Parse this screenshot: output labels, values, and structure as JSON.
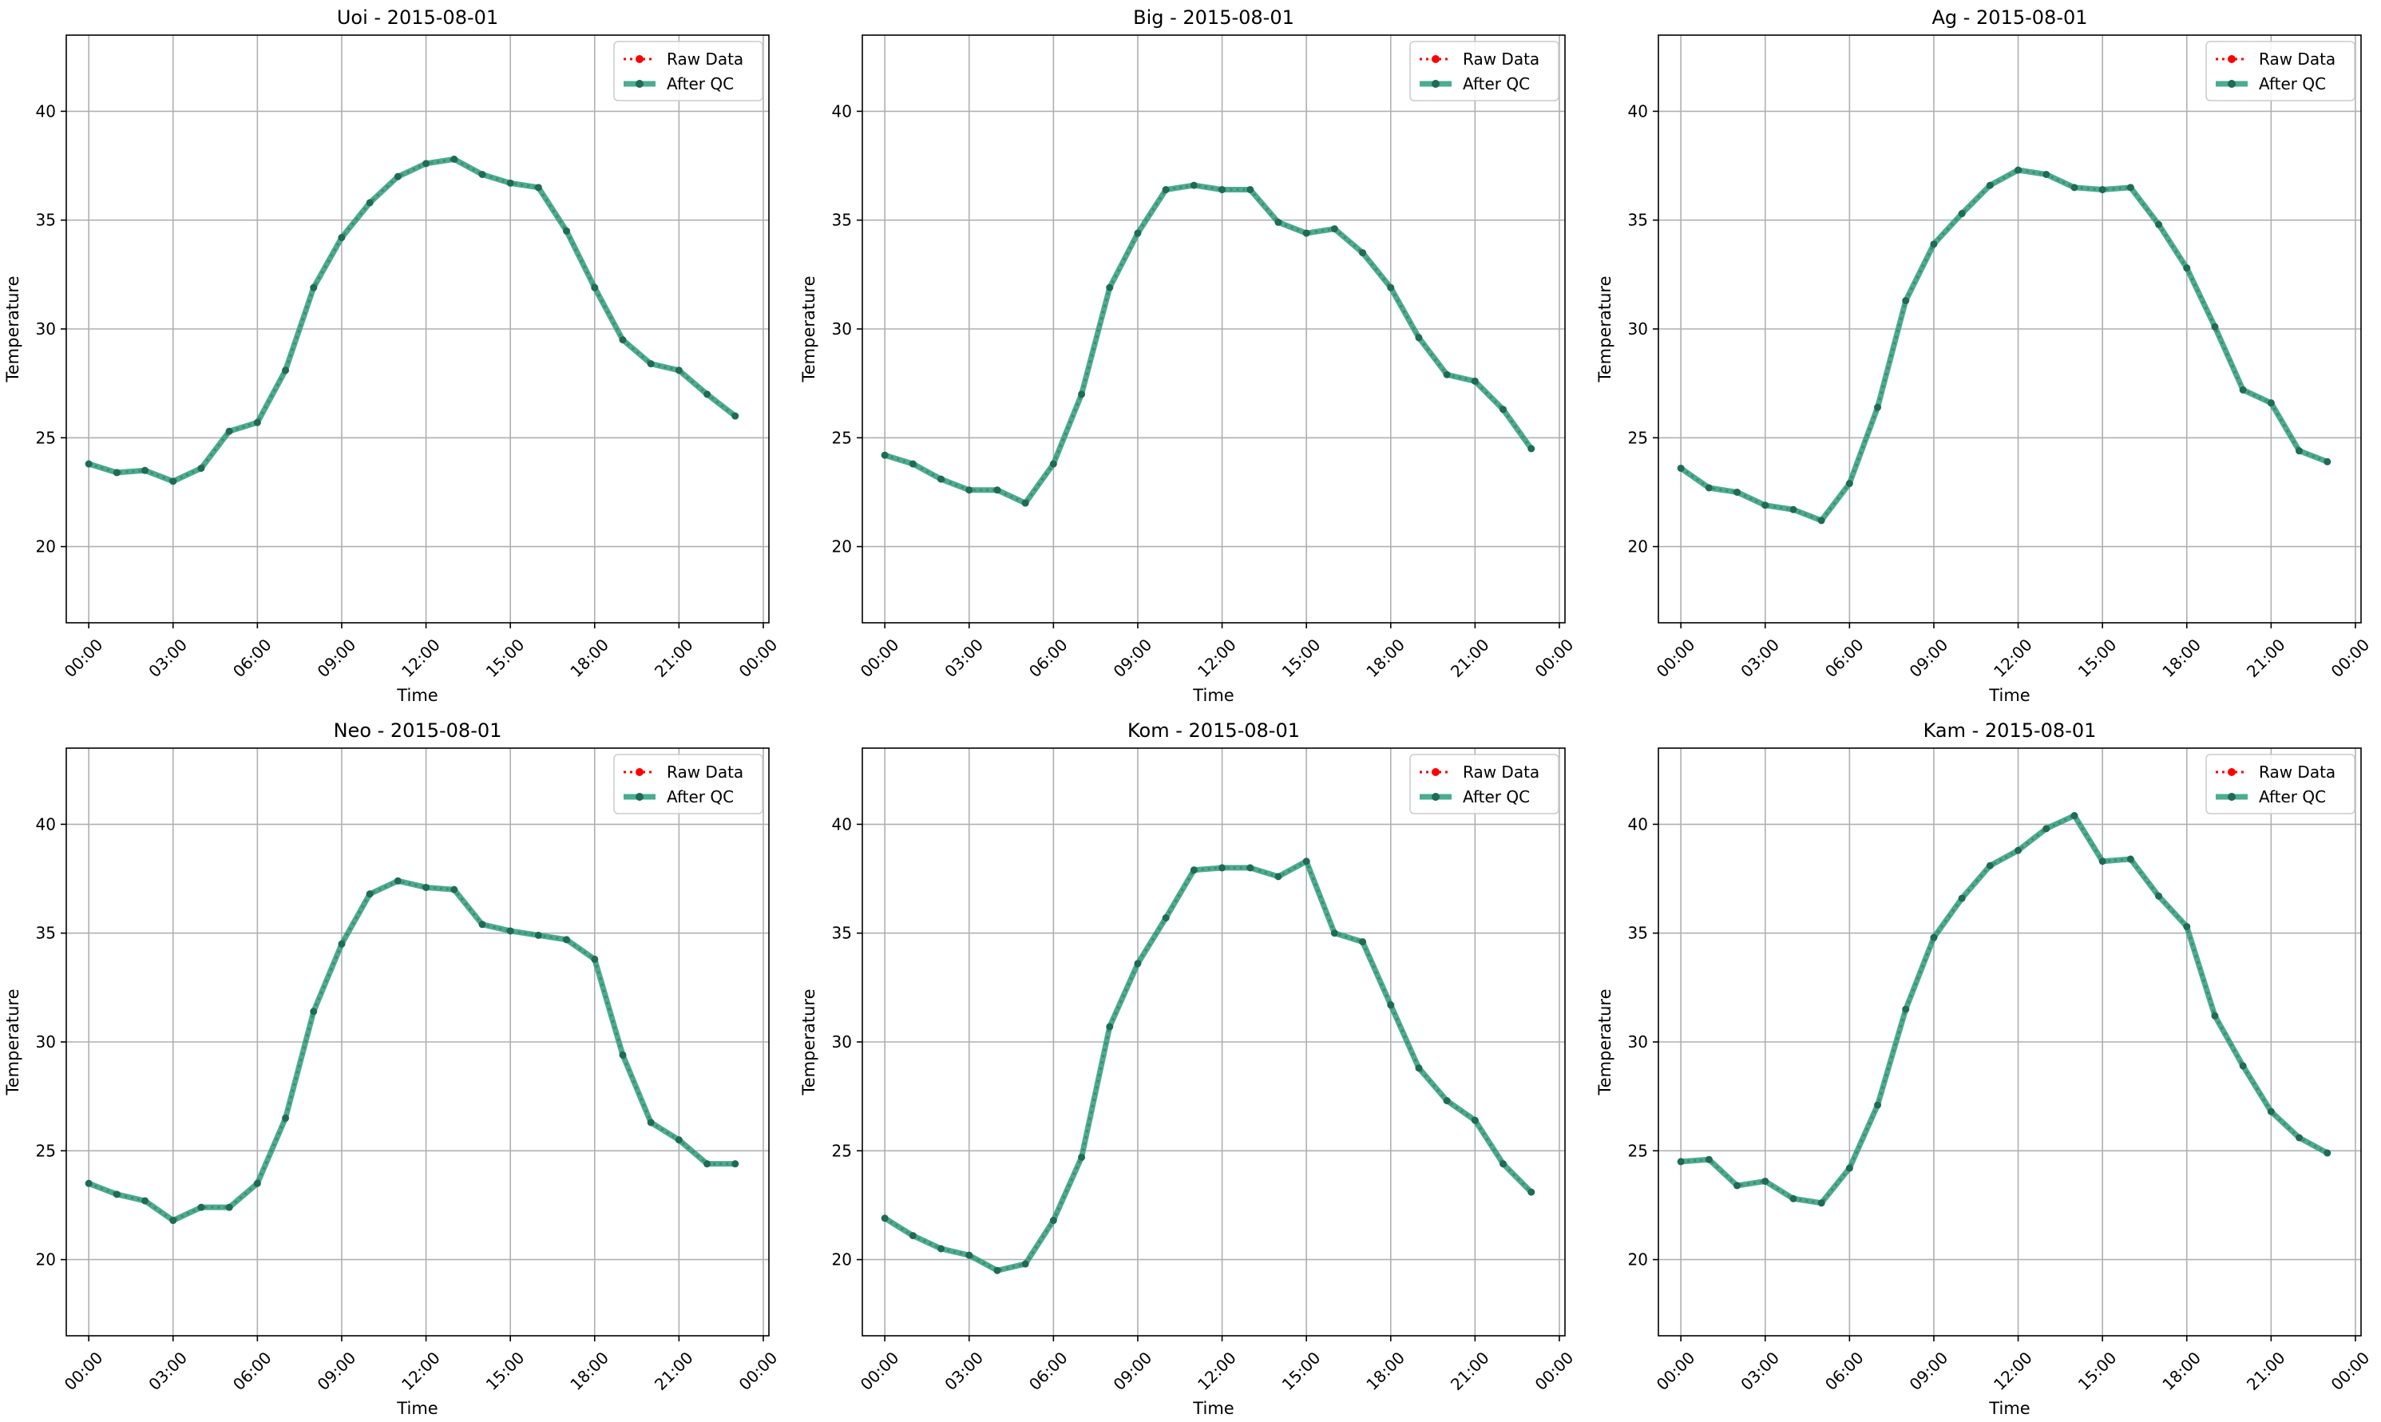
{
  "chart_data": [
    {
      "type": "line",
      "title": "Uoi - 2015-08-01",
      "xlabel": "Time",
      "ylabel": "Temperature",
      "xlim": [
        -0.8,
        24.2
      ],
      "ylim": [
        16.5,
        43.5
      ],
      "yticks": [
        20,
        25,
        30,
        35,
        40
      ],
      "xticks": [
        "00:00",
        "03:00",
        "06:00",
        "09:00",
        "12:00",
        "15:00",
        "18:00",
        "21:00",
        "00:00"
      ],
      "grid": true,
      "legend": "top-right",
      "x": [
        0,
        1,
        2,
        3,
        4,
        5,
        6,
        7,
        8,
        9,
        10,
        11,
        12,
        13,
        14,
        15,
        16,
        17,
        18,
        19,
        20,
        21,
        22,
        23
      ],
      "series": [
        {
          "name": "Raw Data",
          "style": "dotted",
          "color": "#ff0000",
          "values": [
            23.8,
            23.4,
            23.5,
            23.0,
            23.6,
            25.3,
            25.7,
            28.1,
            31.9,
            34.2,
            35.8,
            37.0,
            37.6,
            37.8,
            37.1,
            36.7,
            36.5,
            34.5,
            31.9,
            29.5,
            28.4,
            28.1,
            27.0,
            26.0
          ]
        },
        {
          "name": "After QC",
          "style": "solid",
          "color": "#2a9d7c",
          "values": [
            23.8,
            23.4,
            23.5,
            23.0,
            23.6,
            25.3,
            25.7,
            28.1,
            31.9,
            34.2,
            35.8,
            37.0,
            37.6,
            37.8,
            37.1,
            36.7,
            36.5,
            34.5,
            31.9,
            29.5,
            28.4,
            28.1,
            27.0,
            26.0
          ]
        }
      ]
    },
    {
      "type": "line",
      "title": "Big - 2015-08-01",
      "xlabel": "Time",
      "ylabel": "Temperature",
      "xlim": [
        -0.8,
        24.2
      ],
      "ylim": [
        16.5,
        43.5
      ],
      "yticks": [
        20,
        25,
        30,
        35,
        40
      ],
      "xticks": [
        "00:00",
        "03:00",
        "06:00",
        "09:00",
        "12:00",
        "15:00",
        "18:00",
        "21:00",
        "00:00"
      ],
      "grid": true,
      "legend": "top-right",
      "x": [
        0,
        1,
        2,
        3,
        4,
        5,
        6,
        7,
        8,
        9,
        10,
        11,
        12,
        13,
        14,
        15,
        16,
        17,
        18,
        19,
        20,
        21,
        22,
        23
      ],
      "series": [
        {
          "name": "Raw Data",
          "style": "dotted",
          "color": "#ff0000",
          "values": [
            24.2,
            23.8,
            23.1,
            22.6,
            22.6,
            22.0,
            23.8,
            27.0,
            31.9,
            34.4,
            36.4,
            36.6,
            36.4,
            36.4,
            34.9,
            34.4,
            34.6,
            33.5,
            31.9,
            29.6,
            27.9,
            27.6,
            26.3,
            24.5
          ]
        },
        {
          "name": "After QC",
          "style": "solid",
          "color": "#2a9d7c",
          "values": [
            24.2,
            23.8,
            23.1,
            22.6,
            22.6,
            22.0,
            23.8,
            27.0,
            31.9,
            34.4,
            36.4,
            36.6,
            36.4,
            36.4,
            34.9,
            34.4,
            34.6,
            33.5,
            31.9,
            29.6,
            27.9,
            27.6,
            26.3,
            24.5
          ]
        }
      ]
    },
    {
      "type": "line",
      "title": "Ag - 2015-08-01",
      "xlabel": "Time",
      "ylabel": "Temperature",
      "xlim": [
        -0.8,
        24.2
      ],
      "ylim": [
        16.5,
        43.5
      ],
      "yticks": [
        20,
        25,
        30,
        35,
        40
      ],
      "xticks": [
        "00:00",
        "03:00",
        "06:00",
        "09:00",
        "12:00",
        "15:00",
        "18:00",
        "21:00",
        "00:00"
      ],
      "grid": true,
      "legend": "top-right",
      "x": [
        0,
        1,
        2,
        3,
        4,
        5,
        6,
        7,
        8,
        9,
        10,
        11,
        12,
        13,
        14,
        15,
        16,
        17,
        18,
        19,
        20,
        21,
        22,
        23
      ],
      "series": [
        {
          "name": "Raw Data",
          "style": "dotted",
          "color": "#ff0000",
          "values": [
            23.6,
            22.7,
            22.5,
            21.9,
            21.7,
            21.2,
            22.9,
            26.4,
            31.3,
            33.9,
            35.3,
            36.6,
            37.3,
            37.1,
            36.5,
            36.4,
            36.5,
            34.8,
            32.8,
            30.1,
            27.2,
            26.6,
            24.4,
            23.9
          ]
        },
        {
          "name": "After QC",
          "style": "solid",
          "color": "#2a9d7c",
          "values": [
            23.6,
            22.7,
            22.5,
            21.9,
            21.7,
            21.2,
            22.9,
            26.4,
            31.3,
            33.9,
            35.3,
            36.6,
            37.3,
            37.1,
            36.5,
            36.4,
            36.5,
            34.8,
            32.8,
            30.1,
            27.2,
            26.6,
            24.4,
            23.9
          ]
        }
      ]
    },
    {
      "type": "line",
      "title": "Neo - 2015-08-01",
      "xlabel": "Time",
      "ylabel": "Temperature",
      "xlim": [
        -0.8,
        24.2
      ],
      "ylim": [
        16.5,
        43.5
      ],
      "yticks": [
        20,
        25,
        30,
        35,
        40
      ],
      "xticks": [
        "00:00",
        "03:00",
        "06:00",
        "09:00",
        "12:00",
        "15:00",
        "18:00",
        "21:00",
        "00:00"
      ],
      "grid": true,
      "legend": "top-right",
      "x": [
        0,
        1,
        2,
        3,
        4,
        5,
        6,
        7,
        8,
        9,
        10,
        11,
        12,
        13,
        14,
        15,
        16,
        17,
        18,
        19,
        20,
        21,
        22,
        23
      ],
      "series": [
        {
          "name": "Raw Data",
          "style": "dotted",
          "color": "#ff0000",
          "values": [
            23.5,
            23.0,
            22.7,
            21.8,
            22.4,
            22.4,
            23.5,
            26.5,
            31.4,
            34.5,
            36.8,
            37.4,
            37.1,
            37.0,
            35.4,
            35.1,
            34.9,
            34.7,
            33.8,
            29.4,
            26.3,
            25.5,
            24.4,
            24.4
          ]
        },
        {
          "name": "After QC",
          "style": "solid",
          "color": "#2a9d7c",
          "values": [
            23.5,
            23.0,
            22.7,
            21.8,
            22.4,
            22.4,
            23.5,
            26.5,
            31.4,
            34.5,
            36.8,
            37.4,
            37.1,
            37.0,
            35.4,
            35.1,
            34.9,
            34.7,
            33.8,
            29.4,
            26.3,
            25.5,
            24.4,
            24.4
          ]
        }
      ]
    },
    {
      "type": "line",
      "title": "Kom - 2015-08-01",
      "xlabel": "Time",
      "ylabel": "Temperature",
      "xlim": [
        -0.8,
        24.2
      ],
      "ylim": [
        16.5,
        43.5
      ],
      "yticks": [
        20,
        25,
        30,
        35,
        40
      ],
      "xticks": [
        "00:00",
        "03:00",
        "06:00",
        "09:00",
        "12:00",
        "15:00",
        "18:00",
        "21:00",
        "00:00"
      ],
      "grid": true,
      "legend": "top-right",
      "x": [
        0,
        1,
        2,
        3,
        4,
        5,
        6,
        7,
        8,
        9,
        10,
        11,
        12,
        13,
        14,
        15,
        16,
        17,
        18,
        19,
        20,
        21,
        22,
        23
      ],
      "series": [
        {
          "name": "Raw Data",
          "style": "dotted",
          "color": "#ff0000",
          "values": [
            21.9,
            21.1,
            20.5,
            20.2,
            19.5,
            19.8,
            21.8,
            24.7,
            30.7,
            33.6,
            35.7,
            37.9,
            38.0,
            38.0,
            37.6,
            38.3,
            35.0,
            34.6,
            31.7,
            28.8,
            27.3,
            26.4,
            24.4,
            23.1
          ]
        },
        {
          "name": "After QC",
          "style": "solid",
          "color": "#2a9d7c",
          "values": [
            21.9,
            21.1,
            20.5,
            20.2,
            19.5,
            19.8,
            21.8,
            24.7,
            30.7,
            33.6,
            35.7,
            37.9,
            38.0,
            38.0,
            37.6,
            38.3,
            35.0,
            34.6,
            31.7,
            28.8,
            27.3,
            26.4,
            24.4,
            23.1
          ]
        }
      ]
    },
    {
      "type": "line",
      "title": "Kam - 2015-08-01",
      "xlabel": "Time",
      "ylabel": "Temperature",
      "xlim": [
        -0.8,
        24.2
      ],
      "ylim": [
        16.5,
        43.5
      ],
      "yticks": [
        20,
        25,
        30,
        35,
        40
      ],
      "xticks": [
        "00:00",
        "03:00",
        "06:00",
        "09:00",
        "12:00",
        "15:00",
        "18:00",
        "21:00",
        "00:00"
      ],
      "grid": true,
      "legend": "top-right",
      "x": [
        0,
        1,
        2,
        3,
        4,
        5,
        6,
        7,
        8,
        9,
        10,
        11,
        12,
        13,
        14,
        15,
        16,
        17,
        18,
        19,
        20,
        21,
        22,
        23
      ],
      "series": [
        {
          "name": "Raw Data",
          "style": "dotted",
          "color": "#ff0000",
          "values": [
            24.5,
            24.6,
            23.4,
            23.6,
            22.8,
            22.6,
            24.2,
            27.1,
            31.5,
            34.8,
            36.6,
            38.1,
            38.8,
            39.8,
            40.4,
            38.3,
            38.4,
            36.7,
            35.3,
            31.2,
            28.9,
            26.8,
            25.6,
            24.9
          ]
        },
        {
          "name": "After QC",
          "style": "solid",
          "color": "#2a9d7c",
          "values": [
            24.5,
            24.6,
            23.4,
            23.6,
            22.8,
            22.6,
            24.2,
            27.1,
            31.5,
            34.8,
            36.6,
            38.1,
            38.8,
            39.8,
            40.4,
            38.3,
            38.4,
            36.7,
            35.3,
            31.2,
            28.9,
            26.8,
            25.6,
            24.9
          ]
        }
      ]
    }
  ]
}
